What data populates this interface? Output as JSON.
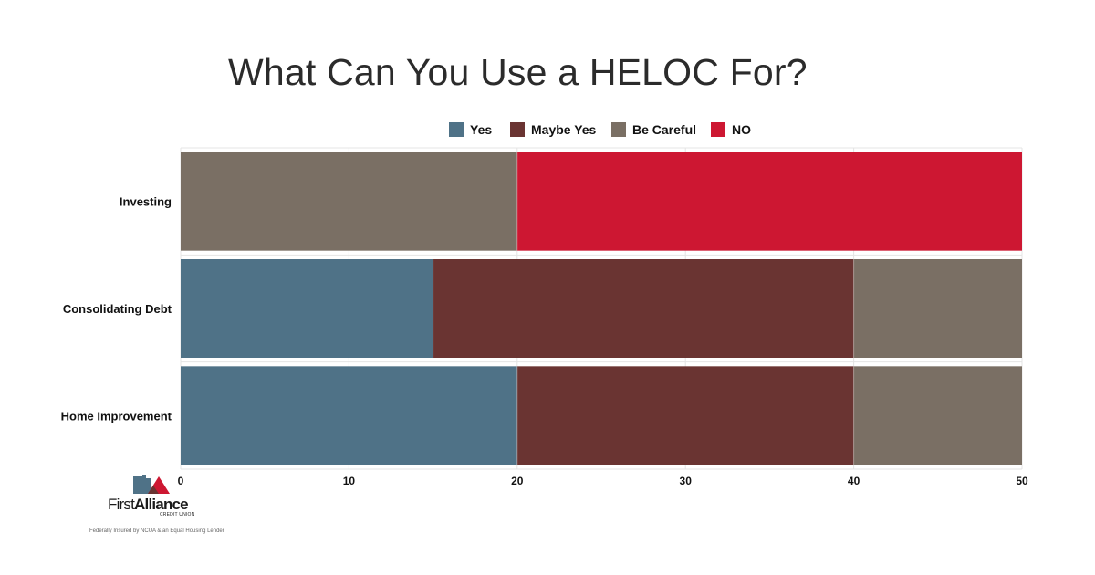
{
  "colors": {
    "Yes": "#4f7287",
    "Maybe Yes": "#6a3432",
    "Be Careful": "#7a6f64",
    "NO": "#cd1732",
    "grid": "#e4e4e4"
  },
  "branding": {
    "name_light": "First",
    "name_bold": "Alliance",
    "subtitle": "CREDIT UNION",
    "disclaimer": "Federally Insured by NCUA & an Equal Housing Lender"
  },
  "chart_data": {
    "type": "bar",
    "orientation": "horizontal",
    "stacked": true,
    "title": "What Can You Use a HELOC For?",
    "categories": [
      "Investing",
      "Consolidating Debt",
      "Home Improvement"
    ],
    "series": [
      {
        "name": "Yes",
        "values": [
          0,
          15,
          20
        ]
      },
      {
        "name": "Maybe Yes",
        "values": [
          0,
          25,
          20
        ]
      },
      {
        "name": "Be Careful",
        "values": [
          20,
          10,
          10
        ]
      },
      {
        "name": "NO",
        "values": [
          30,
          0,
          0
        ]
      }
    ],
    "xlim": [
      0,
      50
    ],
    "xticks": [
      0,
      10,
      20,
      30,
      40,
      50
    ],
    "legend": "top",
    "grid": true
  }
}
